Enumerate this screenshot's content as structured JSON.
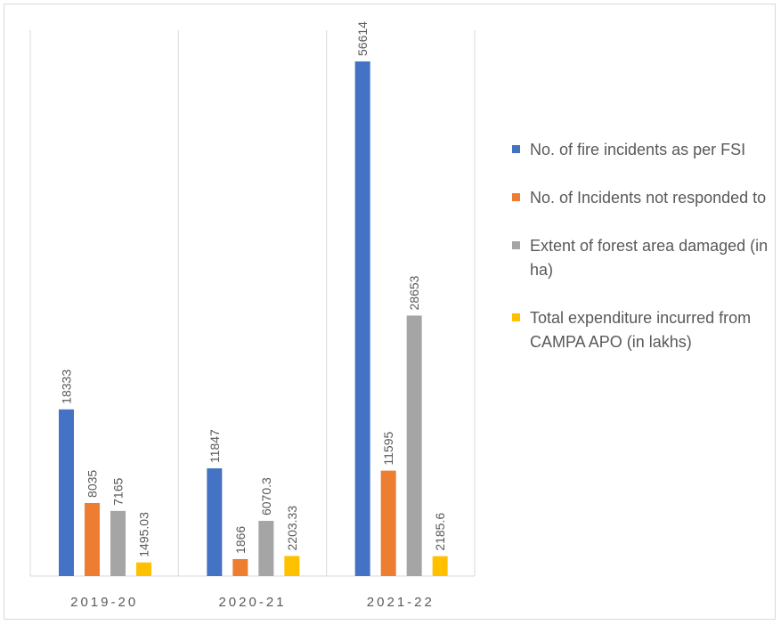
{
  "chart_data": {
    "type": "bar",
    "categories": [
      "2019-20",
      "2020-21",
      "2021-22"
    ],
    "series": [
      {
        "name": "No. of fire incidents as per FSI",
        "color": "#4472c4",
        "values": [
          18333,
          11847,
          56614
        ]
      },
      {
        "name": "No. of Incidents not responded to",
        "color": "#ed7d31",
        "values": [
          8035,
          1866,
          11595
        ]
      },
      {
        "name": "Extent of forest area damaged  (in ha)",
        "color": "#a5a5a5",
        "values": [
          7165,
          6070.3,
          28653
        ]
      },
      {
        "name": "Total expenditure incurred from CAMPA APO  (in lakhs)",
        "color": "#ffc000",
        "values": [
          1495.03,
          2203.33,
          2185.6
        ]
      }
    ],
    "value_labels": [
      [
        "18333",
        "11847",
        "56614"
      ],
      [
        "8035",
        "1866",
        "11595"
      ],
      [
        "7165",
        "6070.3",
        "28653"
      ],
      [
        "1495.03",
        "2203.33",
        "2185.6"
      ]
    ],
    "ylim": [
      0,
      56614
    ],
    "grid": "vertical category separators",
    "legend_position": "right"
  }
}
